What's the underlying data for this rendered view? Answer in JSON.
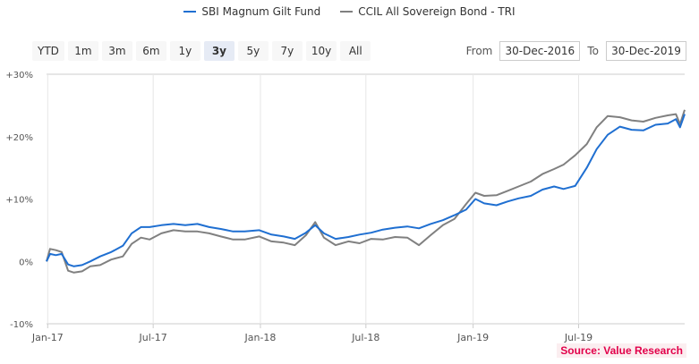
{
  "legend": [
    {
      "name": "SBI Magnum Gilt Fund",
      "color": "#1f6fd1"
    },
    {
      "name": "CCIL All Sovereign Bond - TRI",
      "color": "#808080"
    }
  ],
  "range_buttons": [
    "YTD",
    "1m",
    "3m",
    "6m",
    "1y",
    "3y",
    "5y",
    "7y",
    "10y",
    "All"
  ],
  "active_range": "3y",
  "date_range": {
    "from_label": "From",
    "from_value": "30-Dec-2016",
    "to_label": "To",
    "to_value": "30-Dec-2019"
  },
  "source": "Source: Value Research",
  "chart_data": {
    "type": "line",
    "x_ticks": [
      "Jan-17",
      "Jul-17",
      "Jan-18",
      "Jul-18",
      "Jan-19",
      "Jul-19"
    ],
    "y_ticks": [
      "+30%",
      "+20%",
      "+10%",
      "0%",
      "-10%"
    ],
    "xlim": [
      "2016-12-30",
      "2019-12-30"
    ],
    "ylim": [
      -10,
      30
    ],
    "grid": "vertical",
    "series": [
      {
        "name": "SBI Magnum Gilt Fund",
        "color": "#1f6fd1",
        "points": [
          [
            "2016-12-30",
            0
          ],
          [
            "2017-01-05",
            1.2
          ],
          [
            "2017-01-15",
            1.0
          ],
          [
            "2017-01-25",
            1.2
          ],
          [
            "2017-02-05",
            -0.5
          ],
          [
            "2017-02-15",
            -0.8
          ],
          [
            "2017-03-01",
            -0.6
          ],
          [
            "2017-03-15",
            0
          ],
          [
            "2017-04-01",
            0.8
          ],
          [
            "2017-04-20",
            1.5
          ],
          [
            "2017-05-10",
            2.5
          ],
          [
            "2017-05-25",
            4.5
          ],
          [
            "2017-06-10",
            5.5
          ],
          [
            "2017-06-25",
            5.5
          ],
          [
            "2017-07-15",
            5.8
          ],
          [
            "2017-08-05",
            6.0
          ],
          [
            "2017-08-25",
            5.8
          ],
          [
            "2017-09-15",
            6.0
          ],
          [
            "2017-10-05",
            5.5
          ],
          [
            "2017-10-25",
            5.2
          ],
          [
            "2017-11-15",
            4.8
          ],
          [
            "2017-12-05",
            4.8
          ],
          [
            "2017-12-30",
            5.0
          ],
          [
            "2018-01-20",
            4.3
          ],
          [
            "2018-02-10",
            4.0
          ],
          [
            "2018-03-01",
            3.6
          ],
          [
            "2018-03-20",
            4.6
          ],
          [
            "2018-04-05",
            5.8
          ],
          [
            "2018-04-20",
            4.5
          ],
          [
            "2018-05-10",
            3.6
          ],
          [
            "2018-06-01",
            3.9
          ],
          [
            "2018-06-20",
            4.3
          ],
          [
            "2018-07-10",
            4.6
          ],
          [
            "2018-07-30",
            5.1
          ],
          [
            "2018-08-20",
            5.4
          ],
          [
            "2018-09-10",
            5.6
          ],
          [
            "2018-09-30",
            5.3
          ],
          [
            "2018-10-20",
            6.0
          ],
          [
            "2018-11-10",
            6.6
          ],
          [
            "2018-11-30",
            7.4
          ],
          [
            "2018-12-20",
            8.3
          ],
          [
            "2019-01-05",
            10.0
          ],
          [
            "2019-01-20",
            9.3
          ],
          [
            "2019-02-10",
            9.0
          ],
          [
            "2019-03-01",
            9.6
          ],
          [
            "2019-03-20",
            10.1
          ],
          [
            "2019-04-10",
            10.5
          ],
          [
            "2019-04-30",
            11.5
          ],
          [
            "2019-05-20",
            12.0
          ],
          [
            "2019-06-05",
            11.6
          ],
          [
            "2019-06-25",
            12.1
          ],
          [
            "2019-07-15",
            15.0
          ],
          [
            "2019-08-01",
            18.0
          ],
          [
            "2019-08-20",
            20.3
          ],
          [
            "2019-09-10",
            21.6
          ],
          [
            "2019-09-30",
            21.1
          ],
          [
            "2019-10-20",
            21.0
          ],
          [
            "2019-11-10",
            21.9
          ],
          [
            "2019-12-01",
            22.1
          ],
          [
            "2019-12-15",
            22.8
          ],
          [
            "2019-12-22",
            21.5
          ],
          [
            "2019-12-30",
            23.6
          ]
        ]
      },
      {
        "name": "CCIL All Sovereign Bond - TRI",
        "color": "#808080",
        "points": [
          [
            "2016-12-30",
            0
          ],
          [
            "2017-01-05",
            2.0
          ],
          [
            "2017-01-15",
            1.8
          ],
          [
            "2017-01-25",
            1.5
          ],
          [
            "2017-02-05",
            -1.5
          ],
          [
            "2017-02-15",
            -1.8
          ],
          [
            "2017-03-01",
            -1.6
          ],
          [
            "2017-03-15",
            -0.8
          ],
          [
            "2017-04-01",
            -0.6
          ],
          [
            "2017-04-20",
            0.3
          ],
          [
            "2017-05-10",
            0.8
          ],
          [
            "2017-05-25",
            2.8
          ],
          [
            "2017-06-10",
            3.8
          ],
          [
            "2017-06-25",
            3.5
          ],
          [
            "2017-07-15",
            4.5
          ],
          [
            "2017-08-05",
            5.0
          ],
          [
            "2017-08-25",
            4.8
          ],
          [
            "2017-09-15",
            4.8
          ],
          [
            "2017-10-05",
            4.5
          ],
          [
            "2017-10-25",
            4.0
          ],
          [
            "2017-11-15",
            3.5
          ],
          [
            "2017-12-05",
            3.5
          ],
          [
            "2017-12-30",
            4.0
          ],
          [
            "2018-01-20",
            3.2
          ],
          [
            "2018-02-10",
            3.0
          ],
          [
            "2018-03-01",
            2.6
          ],
          [
            "2018-03-20",
            4.2
          ],
          [
            "2018-04-05",
            6.3
          ],
          [
            "2018-04-20",
            3.8
          ],
          [
            "2018-05-10",
            2.6
          ],
          [
            "2018-06-01",
            3.2
          ],
          [
            "2018-06-20",
            2.9
          ],
          [
            "2018-07-10",
            3.6
          ],
          [
            "2018-07-30",
            3.5
          ],
          [
            "2018-08-20",
            3.9
          ],
          [
            "2018-09-10",
            3.8
          ],
          [
            "2018-09-30",
            2.6
          ],
          [
            "2018-10-20",
            4.2
          ],
          [
            "2018-11-10",
            5.8
          ],
          [
            "2018-11-30",
            6.8
          ],
          [
            "2018-12-20",
            9.2
          ],
          [
            "2019-01-05",
            11.0
          ],
          [
            "2019-01-20",
            10.5
          ],
          [
            "2019-02-10",
            10.6
          ],
          [
            "2019-03-01",
            11.3
          ],
          [
            "2019-03-20",
            12.0
          ],
          [
            "2019-04-10",
            12.8
          ],
          [
            "2019-04-30",
            14.0
          ],
          [
            "2019-05-20",
            14.8
          ],
          [
            "2019-06-05",
            15.5
          ],
          [
            "2019-06-25",
            17.0
          ],
          [
            "2019-07-15",
            18.8
          ],
          [
            "2019-08-01",
            21.5
          ],
          [
            "2019-08-20",
            23.3
          ],
          [
            "2019-09-10",
            23.1
          ],
          [
            "2019-09-30",
            22.6
          ],
          [
            "2019-10-20",
            22.4
          ],
          [
            "2019-11-10",
            23.0
          ],
          [
            "2019-12-01",
            23.4
          ],
          [
            "2019-12-15",
            23.6
          ],
          [
            "2019-12-22",
            22.0
          ],
          [
            "2019-12-30",
            24.3
          ]
        ]
      }
    ]
  }
}
